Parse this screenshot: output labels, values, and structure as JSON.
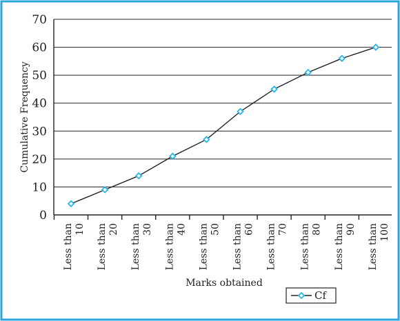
{
  "chart_data": {
    "type": "line",
    "ylabel": "Cumulative Frequency",
    "xlabel": "Marks obtained",
    "categories": [
      [
        "Less than",
        "10"
      ],
      [
        "Less than",
        "20"
      ],
      [
        "Less than",
        "30"
      ],
      [
        "Less than",
        "40"
      ],
      [
        "Less than",
        "50"
      ],
      [
        "Less than",
        "60"
      ],
      [
        "Less than",
        "70"
      ],
      [
        "Less than",
        "80"
      ],
      [
        "Less than",
        "90"
      ],
      [
        "Less than",
        "100"
      ]
    ],
    "series": [
      {
        "name": "Cf",
        "values": [
          4,
          9,
          14,
          21,
          27,
          37,
          45,
          51,
          56,
          60
        ]
      }
    ],
    "ylim": [
      0,
      70
    ],
    "yticks": [
      0,
      10,
      20,
      30,
      40,
      50,
      60,
      70
    ],
    "grid": true,
    "legend": "bottom-right",
    "colors": {
      "frame": "#2aa6dd",
      "marker": "#29b6e8",
      "line": "#222222"
    }
  }
}
